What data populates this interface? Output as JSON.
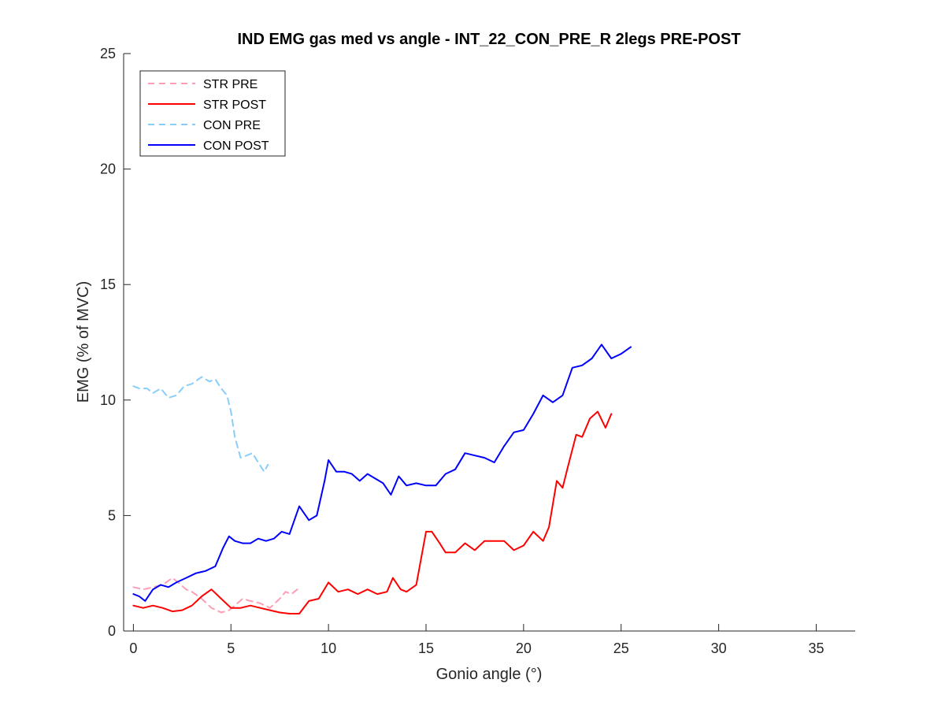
{
  "chart_data": {
    "type": "line",
    "title": "IND EMG gas med vs angle - INT_22_CON_PRE_R 2legs PRE-POST",
    "xlabel": "Gonio angle (°)",
    "ylabel": "EMG (% of MVC)",
    "xlim": [
      -0.5,
      37
    ],
    "ylim": [
      0,
      25
    ],
    "xticks": [
      0,
      5,
      10,
      15,
      20,
      25,
      30,
      35
    ],
    "yticks": [
      0,
      5,
      10,
      15,
      20,
      25
    ],
    "grid": false,
    "legend_position": "top-left",
    "series": [
      {
        "name": "STR PRE",
        "color": "#ff9eb5",
        "style": "dashed",
        "x": [
          0,
          0.5,
          1.0,
          1.5,
          2.0,
          2.3,
          2.7,
          3.0,
          3.5,
          4.0,
          4.5,
          4.9,
          5.2,
          5.6,
          6.0,
          6.5,
          7.0,
          7.5,
          7.8,
          8.1,
          8.4
        ],
        "y": [
          1.9,
          1.8,
          1.9,
          2.0,
          2.3,
          2.1,
          1.8,
          1.7,
          1.4,
          1.0,
          0.8,
          0.9,
          1.1,
          1.4,
          1.3,
          1.2,
          1.0,
          1.4,
          1.7,
          1.6,
          1.8
        ]
      },
      {
        "name": "STR POST",
        "color": "#ff0000",
        "style": "solid",
        "x": [
          0,
          0.5,
          1.0,
          1.5,
          2.0,
          2.5,
          3.0,
          3.5,
          4.0,
          4.5,
          5.0,
          5.5,
          6.0,
          6.5,
          7.0,
          7.5,
          8.0,
          8.5,
          9.0,
          9.5,
          10.0,
          10.5,
          11.0,
          11.5,
          12.0,
          12.5,
          13.0,
          13.3,
          13.7,
          14.0,
          14.5,
          15.0,
          15.3,
          15.7,
          16.0,
          16.5,
          17.0,
          17.5,
          18.0,
          18.5,
          19.0,
          19.5,
          20.0,
          20.5,
          21.0,
          21.3,
          21.7,
          22.0,
          22.3,
          22.7,
          23.0,
          23.4,
          23.8,
          24.2,
          24.5
        ],
        "y": [
          1.1,
          1.0,
          1.1,
          1.0,
          0.85,
          0.9,
          1.1,
          1.5,
          1.8,
          1.4,
          1.0,
          1.0,
          1.1,
          1.0,
          0.9,
          0.8,
          0.75,
          0.75,
          1.3,
          1.4,
          2.1,
          1.7,
          1.8,
          1.6,
          1.8,
          1.6,
          1.7,
          2.3,
          1.8,
          1.7,
          2.0,
          4.3,
          4.3,
          3.8,
          3.4,
          3.4,
          3.8,
          3.5,
          3.9,
          3.9,
          3.9,
          3.5,
          3.7,
          4.3,
          3.9,
          4.5,
          6.5,
          6.2,
          7.2,
          8.5,
          8.4,
          9.2,
          9.5,
          8.8,
          9.4
        ]
      },
      {
        "name": "CON PRE",
        "color": "#87cefa",
        "style": "dashed",
        "x": [
          0,
          0.3,
          0.7,
          1.0,
          1.4,
          1.8,
          2.2,
          2.6,
          3.0,
          3.5,
          3.9,
          4.2,
          4.5,
          4.8,
          5.0,
          5.2,
          5.5,
          5.8,
          6.1,
          6.4,
          6.7,
          6.9
        ],
        "y": [
          10.6,
          10.5,
          10.5,
          10.3,
          10.5,
          10.1,
          10.2,
          10.6,
          10.7,
          11.0,
          10.8,
          10.9,
          10.5,
          10.2,
          9.5,
          8.4,
          7.5,
          7.6,
          7.7,
          7.3,
          6.9,
          7.2
        ]
      },
      {
        "name": "CON POST",
        "color": "#0000ff",
        "style": "solid",
        "x": [
          0,
          0.3,
          0.6,
          1.0,
          1.4,
          1.8,
          2.2,
          2.7,
          3.2,
          3.7,
          4.2,
          4.6,
          4.9,
          5.2,
          5.6,
          6.0,
          6.4,
          6.8,
          7.2,
          7.6,
          8.0,
          8.5,
          9.0,
          9.4,
          9.8,
          10.0,
          10.4,
          10.8,
          11.2,
          11.6,
          12.0,
          12.4,
          12.8,
          13.2,
          13.6,
          14.0,
          14.5,
          15.0,
          15.5,
          16.0,
          16.5,
          17.0,
          17.5,
          18.0,
          18.5,
          19.0,
          19.5,
          20.0,
          20.5,
          21.0,
          21.5,
          22.0,
          22.5,
          23.0,
          23.5,
          24.0,
          24.5,
          25.0,
          25.5
        ],
        "y": [
          1.6,
          1.5,
          1.3,
          1.8,
          2.0,
          1.9,
          2.1,
          2.3,
          2.5,
          2.6,
          2.8,
          3.6,
          4.1,
          3.9,
          3.8,
          3.8,
          4.0,
          3.9,
          4.0,
          4.3,
          4.2,
          5.4,
          4.8,
          5.0,
          6.5,
          7.4,
          6.9,
          6.9,
          6.8,
          6.5,
          6.8,
          6.6,
          6.4,
          5.9,
          6.7,
          6.3,
          6.4,
          6.3,
          6.3,
          6.8,
          7.0,
          7.7,
          7.6,
          7.5,
          7.3,
          8.0,
          8.6,
          8.7,
          9.4,
          10.2,
          9.9,
          10.2,
          11.4,
          11.5,
          11.8,
          12.4,
          11.8,
          12.0,
          12.3
        ]
      }
    ]
  }
}
